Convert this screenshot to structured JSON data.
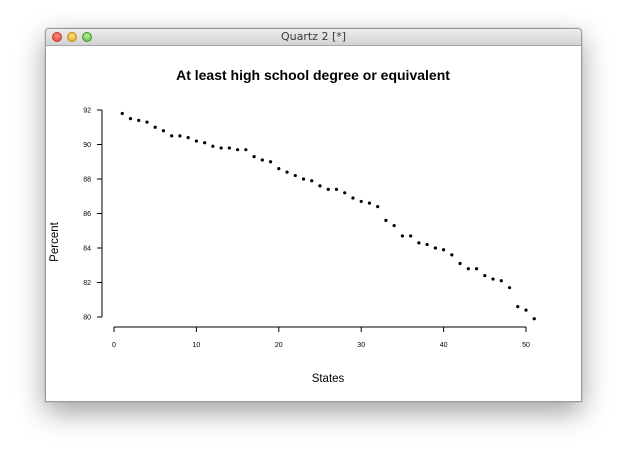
{
  "window": {
    "title": "Quartz 2 [*]"
  },
  "chart_data": {
    "type": "scatter",
    "title": "At least high school degree or equivalent",
    "xlabel": "States",
    "ylabel": "Percent",
    "xlim": [
      0,
      51
    ],
    "ylim": [
      80,
      92
    ],
    "xticks": [
      0,
      10,
      20,
      30,
      40,
      50
    ],
    "yticks": [
      80,
      82,
      84,
      86,
      88,
      90,
      92
    ],
    "grid": false,
    "series": [
      {
        "x": [
          1,
          2,
          3,
          4,
          5,
          6,
          7,
          8,
          9,
          10,
          11,
          12,
          13,
          14,
          15,
          16,
          17,
          18,
          19,
          20,
          21,
          22,
          23,
          24,
          25,
          26,
          27,
          28,
          29,
          30,
          31,
          32,
          33,
          34,
          35,
          36,
          37,
          38,
          39,
          40,
          41,
          42,
          43,
          44,
          45,
          46,
          47,
          48,
          49,
          50,
          51
        ],
        "y": [
          91.8,
          91.5,
          91.4,
          91.3,
          91.0,
          90.8,
          90.5,
          90.5,
          90.4,
          90.2,
          90.1,
          89.9,
          89.8,
          89.8,
          89.7,
          89.7,
          89.3,
          89.1,
          89.0,
          88.6,
          88.4,
          88.2,
          88.0,
          87.9,
          87.6,
          87.4,
          87.4,
          87.2,
          86.9,
          86.7,
          86.6,
          86.4,
          85.6,
          85.3,
          84.7,
          84.7,
          84.3,
          84.2,
          84.0,
          83.9,
          83.6,
          83.1,
          82.8,
          82.8,
          82.4,
          82.2,
          82.1,
          81.7,
          80.6,
          80.4,
          79.9
        ]
      }
    ]
  }
}
